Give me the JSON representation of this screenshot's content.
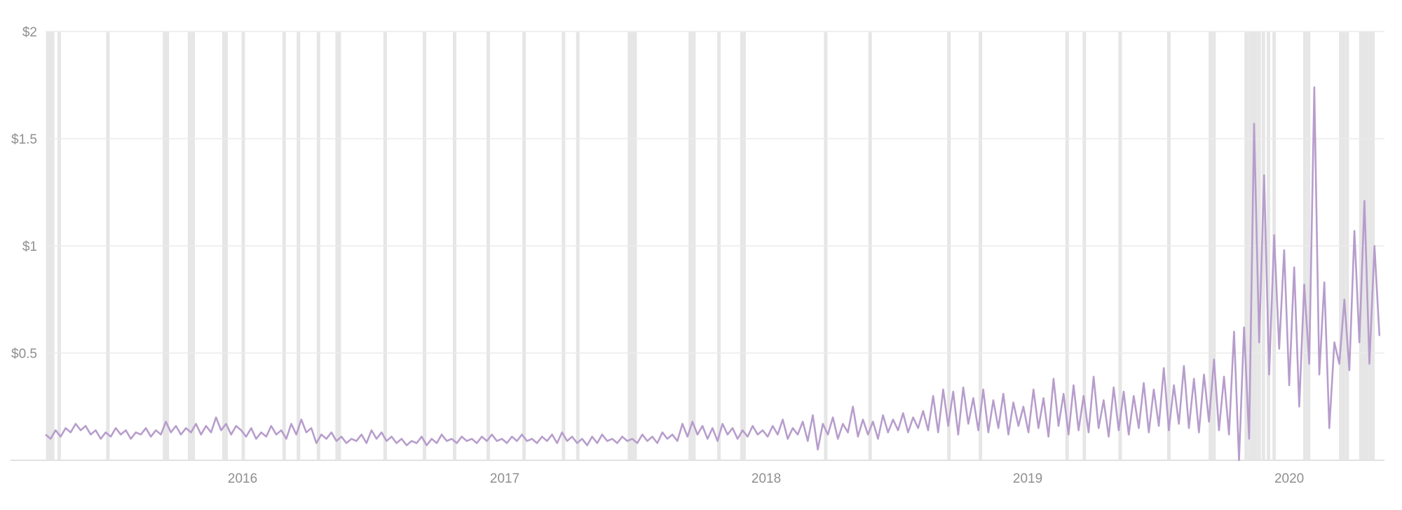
{
  "chart_data": {
    "type": "line",
    "title": "",
    "xlabel": "",
    "ylabel": "",
    "ylim": [
      0,
      2
    ],
    "xlim": [
      "2015-04-01",
      "2020-05-13"
    ],
    "grid": "horizontal",
    "legend": "none",
    "y_ticks": [
      {
        "value": 0.5,
        "label": "$0.5"
      },
      {
        "value": 1,
        "label": "$1"
      },
      {
        "value": 1.5,
        "label": "$1.5"
      },
      {
        "value": 2,
        "label": "$2"
      }
    ],
    "x_ticks": [
      {
        "value": "2016-01-01",
        "label": "2016"
      },
      {
        "value": "2017-01-01",
        "label": "2017"
      },
      {
        "value": "2018-01-01",
        "label": "2018"
      },
      {
        "value": "2019-01-01",
        "label": "2019"
      },
      {
        "value": "2020-01-01",
        "label": "2020"
      }
    ],
    "colors": {
      "line": "#b79dcc",
      "band": "#e6e6e6",
      "grid": "#ebebeb",
      "tick_text": "#8f8f8f"
    },
    "highlight_dates": [
      "2015-04-04",
      "2015-04-08",
      "2015-04-11",
      "2015-04-20",
      "2015-06-27",
      "2015-09-14",
      "2015-09-18",
      "2015-10-19",
      "2015-10-24",
      "2015-12-06",
      "2015-12-09",
      "2016-01-02",
      "2016-02-28",
      "2016-03-19",
      "2016-04-16",
      "2016-05-12",
      "2016-05-15",
      "2016-07-18",
      "2016-09-11",
      "2016-10-23",
      "2016-12-09",
      "2017-01-28",
      "2017-03-24",
      "2017-04-13",
      "2017-06-24",
      "2017-06-28",
      "2017-07-02",
      "2017-09-17",
      "2017-09-22",
      "2017-10-27",
      "2017-11-28",
      "2017-12-01",
      "2018-03-25",
      "2018-05-26",
      "2018-09-13",
      "2018-10-27",
      "2019-02-25",
      "2019-03-21",
      "2019-05-10",
      "2019-07-17",
      "2019-09-13",
      "2019-09-18",
      "2019-11-02",
      "2019-11-07",
      "2019-11-11",
      "2019-11-15",
      "2019-11-20",
      "2019-11-26",
      "2019-12-03",
      "2019-12-11",
      "2020-01-23",
      "2020-01-28",
      "2020-03-13",
      "2020-03-17",
      "2020-03-22",
      "2020-04-10",
      "2020-04-14",
      "2020-04-18",
      "2020-04-23",
      "2020-04-27"
    ],
    "series": [
      {
        "start": "2015-04-01",
        "frequency": "weekly",
        "values": [
          0.12,
          0.1,
          0.14,
          0.11,
          0.15,
          0.13,
          0.17,
          0.14,
          0.16,
          0.12,
          0.14,
          0.1,
          0.13,
          0.11,
          0.15,
          0.12,
          0.14,
          0.1,
          0.13,
          0.12,
          0.15,
          0.11,
          0.14,
          0.12,
          0.18,
          0.13,
          0.16,
          0.12,
          0.15,
          0.13,
          0.17,
          0.12,
          0.16,
          0.13,
          0.2,
          0.14,
          0.17,
          0.12,
          0.16,
          0.14,
          0.11,
          0.15,
          0.1,
          0.13,
          0.11,
          0.16,
          0.12,
          0.14,
          0.1,
          0.17,
          0.12,
          0.19,
          0.13,
          0.15,
          0.08,
          0.12,
          0.1,
          0.13,
          0.09,
          0.11,
          0.08,
          0.1,
          0.09,
          0.12,
          0.08,
          0.14,
          0.1,
          0.13,
          0.09,
          0.11,
          0.08,
          0.1,
          0.07,
          0.09,
          0.08,
          0.11,
          0.07,
          0.1,
          0.08,
          0.12,
          0.09,
          0.1,
          0.08,
          0.11,
          0.09,
          0.1,
          0.08,
          0.11,
          0.09,
          0.12,
          0.09,
          0.1,
          0.08,
          0.11,
          0.09,
          0.12,
          0.09,
          0.1,
          0.08,
          0.11,
          0.09,
          0.12,
          0.08,
          0.13,
          0.09,
          0.11,
          0.08,
          0.1,
          0.07,
          0.11,
          0.08,
          0.12,
          0.09,
          0.1,
          0.08,
          0.11,
          0.09,
          0.1,
          0.08,
          0.12,
          0.09,
          0.11,
          0.08,
          0.13,
          0.1,
          0.12,
          0.09,
          0.17,
          0.11,
          0.18,
          0.12,
          0.16,
          0.1,
          0.15,
          0.09,
          0.17,
          0.12,
          0.15,
          0.1,
          0.14,
          0.11,
          0.16,
          0.12,
          0.14,
          0.11,
          0.16,
          0.12,
          0.19,
          0.1,
          0.15,
          0.12,
          0.18,
          0.09,
          0.21,
          0.05,
          0.17,
          0.12,
          0.2,
          0.1,
          0.17,
          0.13,
          0.25,
          0.11,
          0.19,
          0.12,
          0.18,
          0.1,
          0.21,
          0.13,
          0.19,
          0.14,
          0.22,
          0.13,
          0.2,
          0.15,
          0.23,
          0.14,
          0.3,
          0.13,
          0.33,
          0.16,
          0.32,
          0.12,
          0.34,
          0.17,
          0.29,
          0.14,
          0.33,
          0.13,
          0.28,
          0.15,
          0.31,
          0.12,
          0.27,
          0.16,
          0.25,
          0.13,
          0.33,
          0.15,
          0.29,
          0.11,
          0.38,
          0.16,
          0.31,
          0.12,
          0.35,
          0.14,
          0.3,
          0.13,
          0.39,
          0.15,
          0.28,
          0.11,
          0.34,
          0.14,
          0.32,
          0.12,
          0.3,
          0.15,
          0.36,
          0.13,
          0.33,
          0.16,
          0.43,
          0.14,
          0.35,
          0.17,
          0.44,
          0.15,
          0.38,
          0.13,
          0.4,
          0.18,
          0.47,
          0.14,
          0.39,
          0.12,
          0.6,
          0.0,
          0.62,
          0.1,
          1.57,
          0.55,
          1.33,
          0.4,
          1.05,
          0.52,
          0.98,
          0.35,
          0.9,
          0.25,
          0.82,
          0.45,
          1.74,
          0.4,
          0.83,
          0.15,
          0.55,
          0.45,
          0.75,
          0.42,
          1.07,
          0.55,
          1.21,
          0.45,
          1.0,
          0.58
        ]
      }
    ]
  }
}
